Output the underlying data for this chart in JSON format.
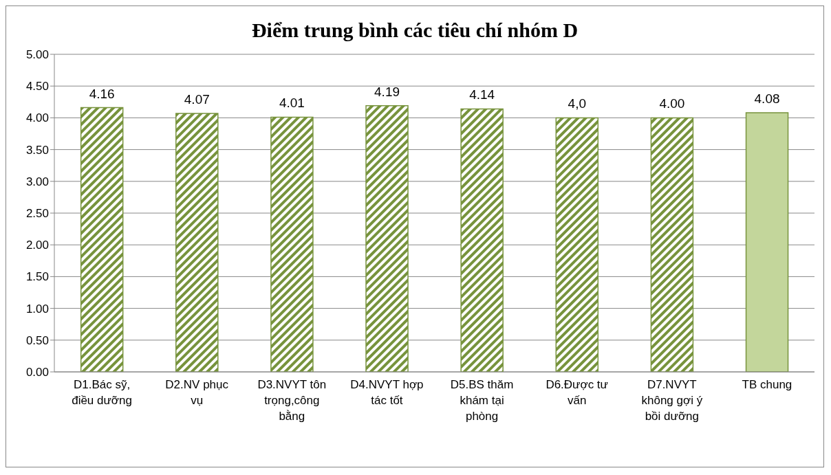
{
  "chart_data": {
    "type": "bar",
    "title": "Điểm trung bình các tiêu chí nhóm D",
    "categories": [
      "D1.Bác sỹ, điều dưỡng",
      "D2.NV phục vụ",
      "D3.NVYT tôn trọng,công bằng",
      "D4.NVYT hợp tác tốt",
      "D5.BS thăm khám tại phòng",
      "D6.Được tư vấn",
      "D7.NVYT không gợi ý bồi dưỡng",
      "TB chung"
    ],
    "values": [
      4.16,
      4.07,
      4.01,
      4.19,
      4.14,
      4.0,
      4.0,
      4.08
    ],
    "value_labels": [
      "4.16",
      "4.07",
      "4.01",
      "4.19",
      "4.14",
      "4,0",
      "4.00",
      "4.08"
    ],
    "colors": [
      "#77933c",
      "#77933c",
      "#77933c",
      "#77933c",
      "#77933c",
      "#77933c",
      "#77933c",
      "#c3d69b"
    ],
    "ylim": [
      0,
      5
    ],
    "yticks": [
      {
        "value": 0,
        "label": "0.00"
      },
      {
        "value": 0.5,
        "label": "0.50"
      },
      {
        "value": 1,
        "label": "1.00"
      },
      {
        "value": 1.5,
        "label": "1.50"
      },
      {
        "value": 2,
        "label": "2.00"
      },
      {
        "value": 2.5,
        "label": "2.50"
      },
      {
        "value": 3,
        "label": "3.00"
      },
      {
        "value": 3.5,
        "label": "3.50"
      },
      {
        "value": 4,
        "label": "4.00"
      },
      {
        "value": 4.5,
        "label": "4.50"
      },
      {
        "value": 5,
        "label": "5.00"
      }
    ],
    "grid": "y"
  }
}
